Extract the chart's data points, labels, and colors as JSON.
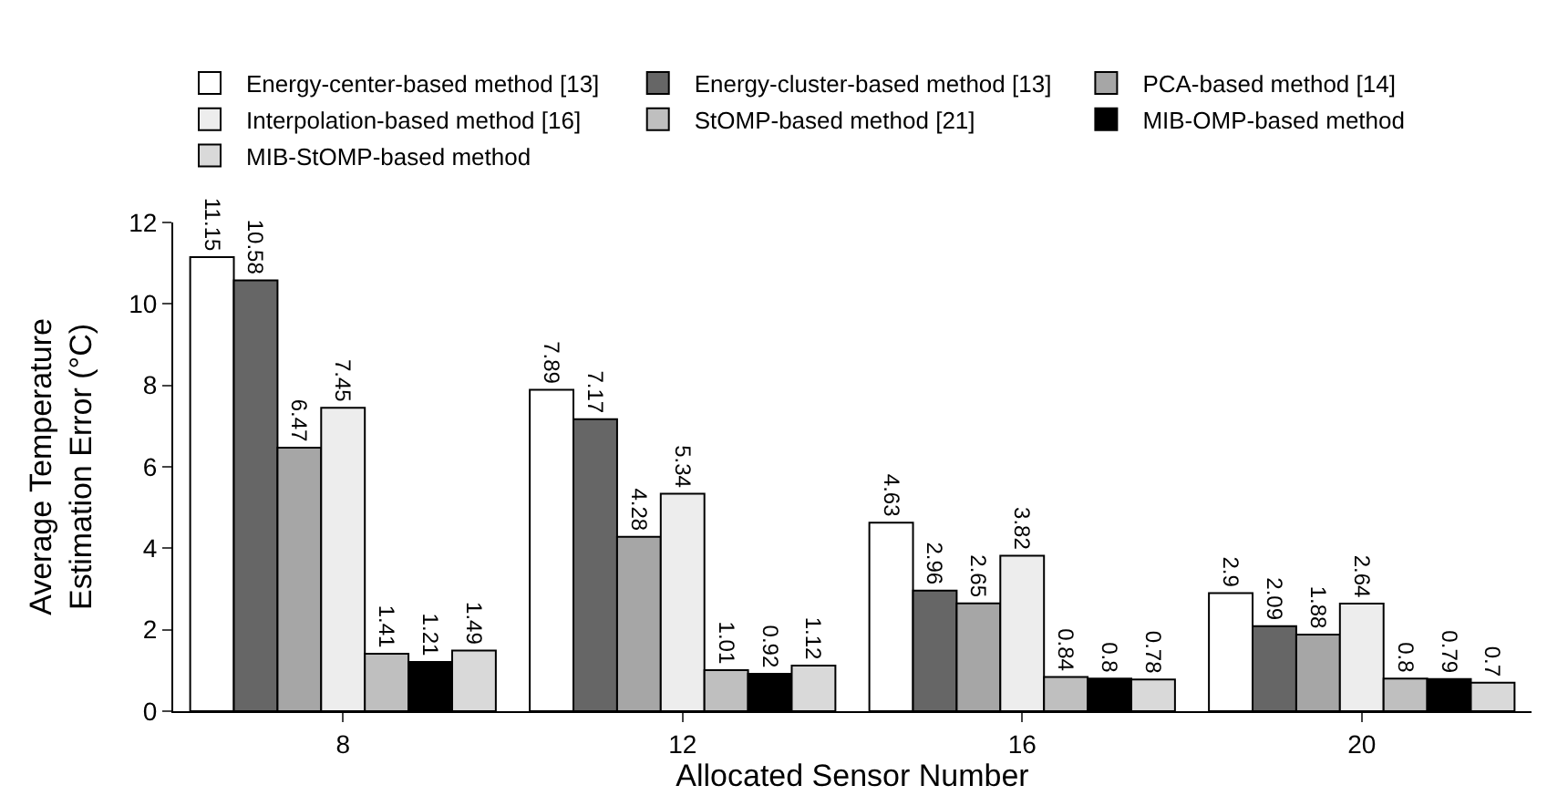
{
  "chart_data": {
    "type": "bar",
    "xlabel": "Allocated Sensor Number",
    "ylabel": "Average Temperature Estimation Error (°C)",
    "categories": [
      "8",
      "12",
      "16",
      "20"
    ],
    "series": [
      {
        "name": "Energy-center-based method [13]",
        "color": "#ffffff",
        "values": [
          11.15,
          7.89,
          4.63,
          2.9
        ]
      },
      {
        "name": "Energy-cluster-based method [13]",
        "color": "#666666",
        "values": [
          10.58,
          7.17,
          2.96,
          2.09
        ]
      },
      {
        "name": "PCA-based method [14]",
        "color": "#a6a6a6",
        "values": [
          6.47,
          4.28,
          2.65,
          1.88
        ]
      },
      {
        "name": "Interpolation-based method [16]",
        "color": "#ededed",
        "values": [
          7.45,
          5.34,
          3.82,
          2.64
        ]
      },
      {
        "name": "StOMP-based method [21]",
        "color": "#bfbfbf",
        "values": [
          1.41,
          1.01,
          0.84,
          0.8
        ]
      },
      {
        "name": "MIB-OMP-based method",
        "color": "#000000",
        "values": [
          1.21,
          0.92,
          0.8,
          0.79
        ]
      },
      {
        "name": "MIB-StOMP-based method",
        "color": "#d9d9d9",
        "values": [
          1.49,
          1.12,
          0.78,
          0.7
        ]
      }
    ],
    "ylim": [
      0,
      12
    ],
    "yticks": [
      0,
      2,
      4,
      6,
      8,
      10,
      12
    ],
    "legend": "top",
    "data_labels": true
  }
}
